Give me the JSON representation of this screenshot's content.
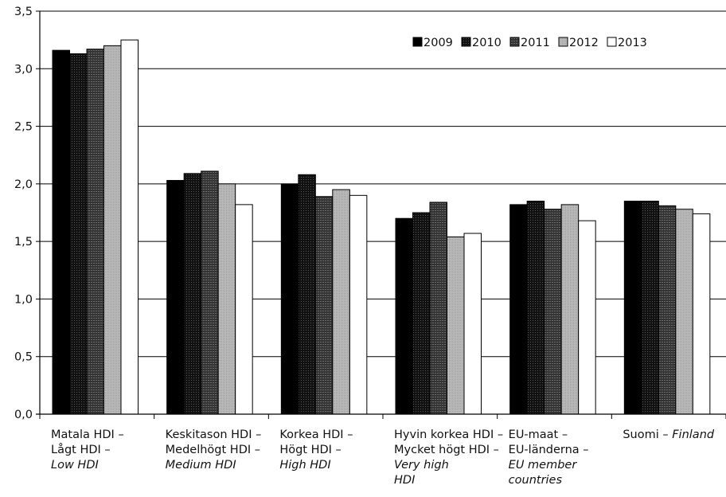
{
  "chart_data": {
    "type": "bar",
    "title": "",
    "xlabel": "",
    "ylabel": "",
    "ylim": [
      0,
      3.5
    ],
    "y_ticks": [
      "0,0",
      "0,5",
      "1,0",
      "1,5",
      "2,0",
      "2,5",
      "3,0",
      "3,5"
    ],
    "y_tick_values": [
      0,
      0.5,
      1.0,
      1.5,
      2.0,
      2.5,
      3.0,
      3.5
    ],
    "grid": "horizontal",
    "legend_position": "top-right",
    "categories": [
      {
        "lines": [
          "Matala HDI –",
          "Lågt HDI –"
        ],
        "en": "Low HDI"
      },
      {
        "lines": [
          "Keskitason HDI –",
          "Medelhögt HDI –"
        ],
        "en": "Medium HDI"
      },
      {
        "lines": [
          "Korkea HDI –",
          "Högt HDI –"
        ],
        "en": "High HDI"
      },
      {
        "lines": [
          "Hyvin korkea HDI –",
          "Mycket högt HDI –"
        ],
        "en": "Very high HDI"
      },
      {
        "lines": [
          "EU-maat –",
          "EU-länderna –"
        ],
        "en": "EU member countries"
      },
      {
        "lines": [
          "Suomi –"
        ],
        "en": "Finland"
      }
    ],
    "series": [
      {
        "name": "2009",
        "color": "#000000",
        "values": [
          3.16,
          2.03,
          2.0,
          1.7,
          1.82,
          1.85
        ]
      },
      {
        "name": "2010",
        "color": "#1c1c1c",
        "values": [
          3.13,
          2.09,
          2.08,
          1.75,
          1.85,
          1.85
        ]
      },
      {
        "name": "2011",
        "color": "#3a3a3a",
        "values": [
          3.17,
          2.11,
          1.89,
          1.84,
          1.78,
          1.81
        ]
      },
      {
        "name": "2012",
        "color": "#b4b4b4",
        "values": [
          3.2,
          2.0,
          1.95,
          1.54,
          1.82,
          1.78
        ]
      },
      {
        "name": "2013",
        "color": "#ffffff",
        "values": [
          3.25,
          1.82,
          1.9,
          1.57,
          1.68,
          1.74
        ]
      }
    ]
  }
}
